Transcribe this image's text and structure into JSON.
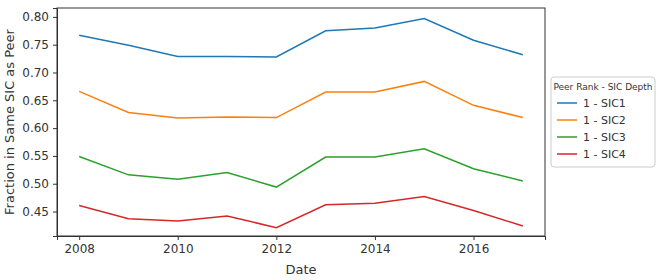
{
  "chart_data": {
    "type": "line",
    "x_label": "Date",
    "y_label": "Fraction in Same SIC as Peer",
    "legend_title": "Peer Rank - SIC Depth",
    "legend": "right",
    "x": [
      2008,
      2009,
      2010,
      2011,
      2012,
      2013,
      2014,
      2015,
      2016,
      2017
    ],
    "xlim": [
      2007.55,
      2017.45
    ],
    "xticks": [
      2008,
      2010,
      2012,
      2014,
      2016
    ],
    "ylim": [
      0.406,
      0.816
    ],
    "yticks": [
      0.45,
      {
        "value": 0.5,
        "label": "0.50"
      },
      0.55,
      {
        "value": 0.6,
        "label": "0.60"
      },
      0.65,
      {
        "value": 0.7,
        "label": "0.70"
      },
      0.75,
      {
        "value": 0.8,
        "label": "0.80"
      }
    ],
    "series": [
      {
        "name": "1 - SIC1",
        "color": "#1f77b4",
        "values": [
          0.767,
          0.749,
          0.729,
          0.729,
          0.728,
          0.775,
          0.78,
          0.797,
          0.758,
          0.732
        ]
      },
      {
        "name": "1 - SIC2",
        "color": "#ff7f0e",
        "values": [
          0.666,
          0.628,
          0.618,
          0.62,
          0.619,
          0.665,
          0.665,
          0.684,
          0.641,
          0.619
        ]
      },
      {
        "name": "1 - SIC3",
        "color": "#2ca02c",
        "values": [
          0.549,
          0.516,
          0.508,
          0.52,
          0.494,
          0.548,
          0.548,
          0.563,
          0.527,
          0.505
        ]
      },
      {
        "name": "1 - SIC4",
        "color": "#d62728",
        "values": [
          0.461,
          0.437,
          0.433,
          0.442,
          0.421,
          0.462,
          0.465,
          0.477,
          0.452,
          0.424
        ]
      }
    ]
  }
}
